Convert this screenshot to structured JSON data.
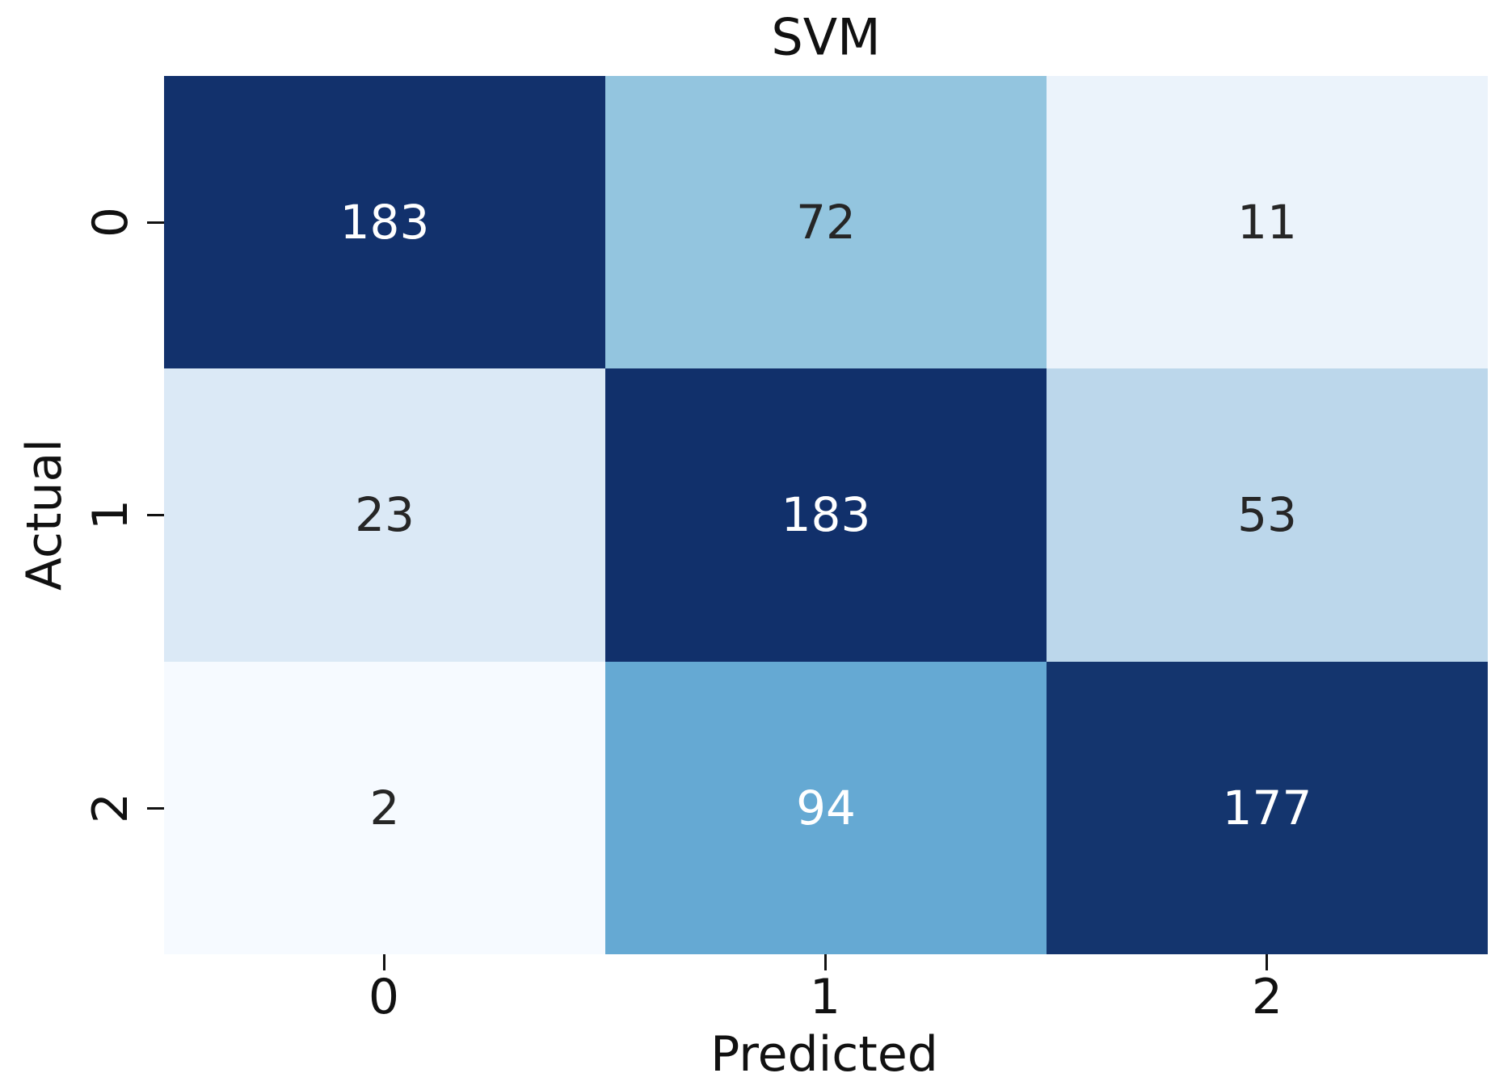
{
  "title": "SVM",
  "chart_data": {
    "type": "heatmap",
    "title": "SVM",
    "xlabel": "Predicted",
    "ylabel": "Actual",
    "x_tick_labels": [
      "0",
      "1",
      "2"
    ],
    "y_tick_labels": [
      "0",
      "1",
      "2"
    ],
    "matrix": [
      [
        183,
        72,
        11
      ],
      [
        23,
        183,
        53
      ],
      [
        2,
        94,
        177
      ]
    ],
    "colormap": "Blues",
    "vmin": 2,
    "vmax": 183,
    "cell_colors": [
      [
        "#12316c",
        "#93c5df",
        "#ebf3fb"
      ],
      [
        "#dbe9f6",
        "#11306b",
        "#bcd7eb"
      ],
      [
        "#f6faff",
        "#65a9d3",
        "#14356e"
      ]
    ],
    "cell_text_colors": [
      [
        "#ffffff",
        "#262626",
        "#262626"
      ],
      [
        "#262626",
        "#ffffff",
        "#262626"
      ],
      [
        "#262626",
        "#ffffff",
        "#ffffff"
      ]
    ],
    "legend": "none",
    "grid": false
  },
  "colors": {
    "background": "#ffffff",
    "text": "#111111"
  }
}
